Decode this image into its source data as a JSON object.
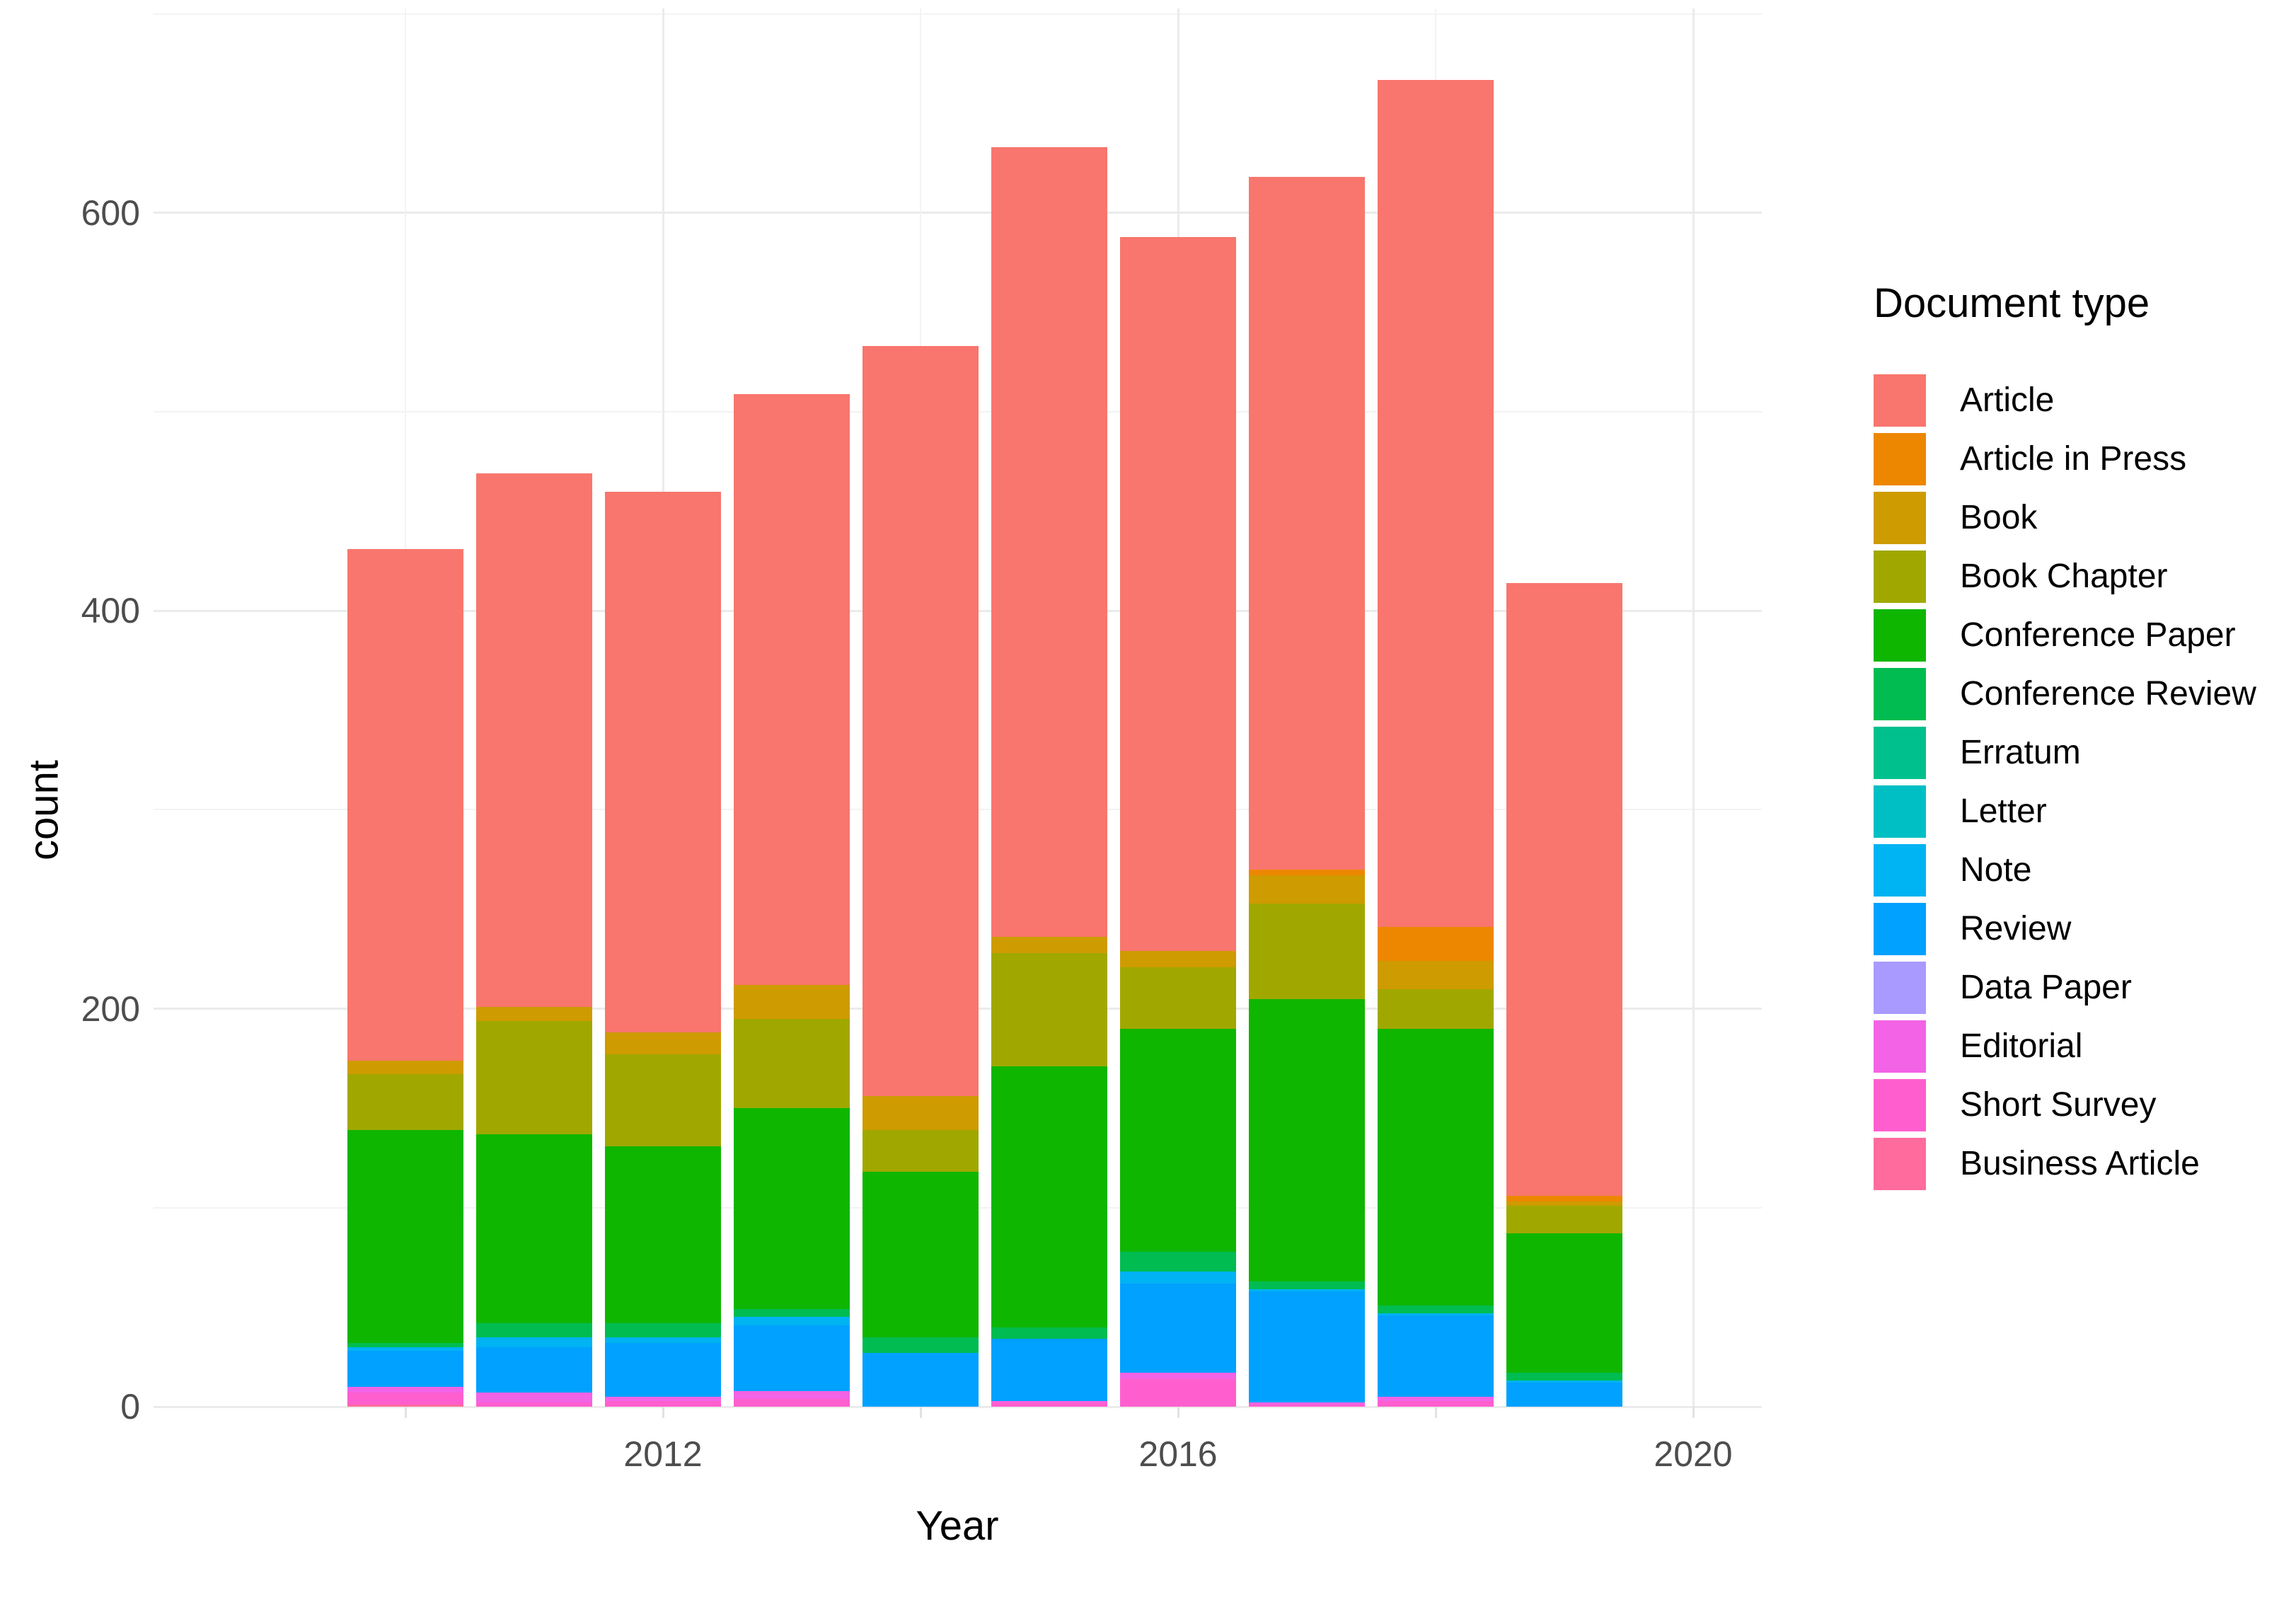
{
  "chart_data": {
    "type": "bar",
    "stacked": true,
    "title": "",
    "xlabel": "Year",
    "ylabel": "count",
    "legend_title": "Document type",
    "legend_position": "right",
    "grid": true,
    "x": [
      2010,
      2011,
      2012,
      2013,
      2014,
      2015,
      2016,
      2017,
      2018,
      2019
    ],
    "x_tick_labels": [
      "2012",
      "2016",
      "2020"
    ],
    "x_tick_years": [
      2012,
      2016,
      2020
    ],
    "x_minor_years": [
      2010,
      2014,
      2018
    ],
    "y_ticks": [
      0,
      200,
      400,
      600
    ],
    "y_minor_ticks": [
      100,
      300,
      500,
      700
    ],
    "ylim": [
      0,
      700
    ],
    "totals": [
      431,
      469,
      460,
      509,
      533,
      633,
      588,
      618,
      667,
      414
    ],
    "series": [
      {
        "name": "Article",
        "color": "#F8766D",
        "values": [
          257,
          268,
          272,
          297,
          377,
          397,
          359,
          348,
          426,
          308
        ]
      },
      {
        "name": "Article in Press",
        "color": "#ED8700",
        "values": [
          0,
          0,
          0,
          0,
          0,
          0,
          0,
          3,
          17,
          3
        ]
      },
      {
        "name": "Book",
        "color": "#CE9B00",
        "values": [
          7,
          7,
          11,
          17,
          17,
          8,
          8,
          14,
          14,
          2
        ]
      },
      {
        "name": "Book Chapter",
        "color": "#A0A800",
        "values": [
          28,
          57,
          46,
          45,
          21,
          57,
          31,
          48,
          20,
          14
        ]
      },
      {
        "name": "Conference Paper",
        "color": "#0FB600",
        "values": [
          107,
          95,
          89,
          101,
          83,
          131,
          112,
          142,
          139,
          70
        ]
      },
      {
        "name": "Conference Review",
        "color": "#00BC51",
        "values": [
          2,
          7,
          7,
          4,
          8,
          6,
          10,
          4,
          4,
          4
        ]
      },
      {
        "name": "Erratum",
        "color": "#00C08D",
        "values": [
          0,
          0,
          0,
          0,
          0,
          0,
          0,
          0,
          0,
          0
        ]
      },
      {
        "name": "Letter",
        "color": "#00BFC4",
        "values": [
          0,
          0,
          0,
          0,
          0,
          0,
          0,
          0,
          0,
          0
        ]
      },
      {
        "name": "Note",
        "color": "#00B3F2",
        "values": [
          2,
          5,
          3,
          4,
          0,
          0,
          6,
          1,
          1,
          1
        ]
      },
      {
        "name": "Review",
        "color": "#00A1FF",
        "values": [
          18,
          23,
          27,
          33,
          27,
          31,
          45,
          56,
          41,
          12
        ]
      },
      {
        "name": "Data Paper",
        "color": "#A89AFF",
        "values": [
          0,
          0,
          0,
          0,
          0,
          0,
          0,
          0,
          0,
          0
        ]
      },
      {
        "name": "Editorial",
        "color": "#F263E6",
        "values": [
          3,
          5,
          2,
          4,
          0,
          1,
          3,
          1,
          2,
          0
        ]
      },
      {
        "name": "Short Survey",
        "color": "#FF5FCE",
        "values": [
          6,
          2,
          3,
          4,
          0,
          2,
          14,
          1,
          3,
          0
        ]
      },
      {
        "name": "Business Article",
        "color": "#FF6B9C",
        "values": [
          1,
          0,
          0,
          0,
          0,
          0,
          0,
          0,
          0,
          0
        ]
      }
    ]
  }
}
